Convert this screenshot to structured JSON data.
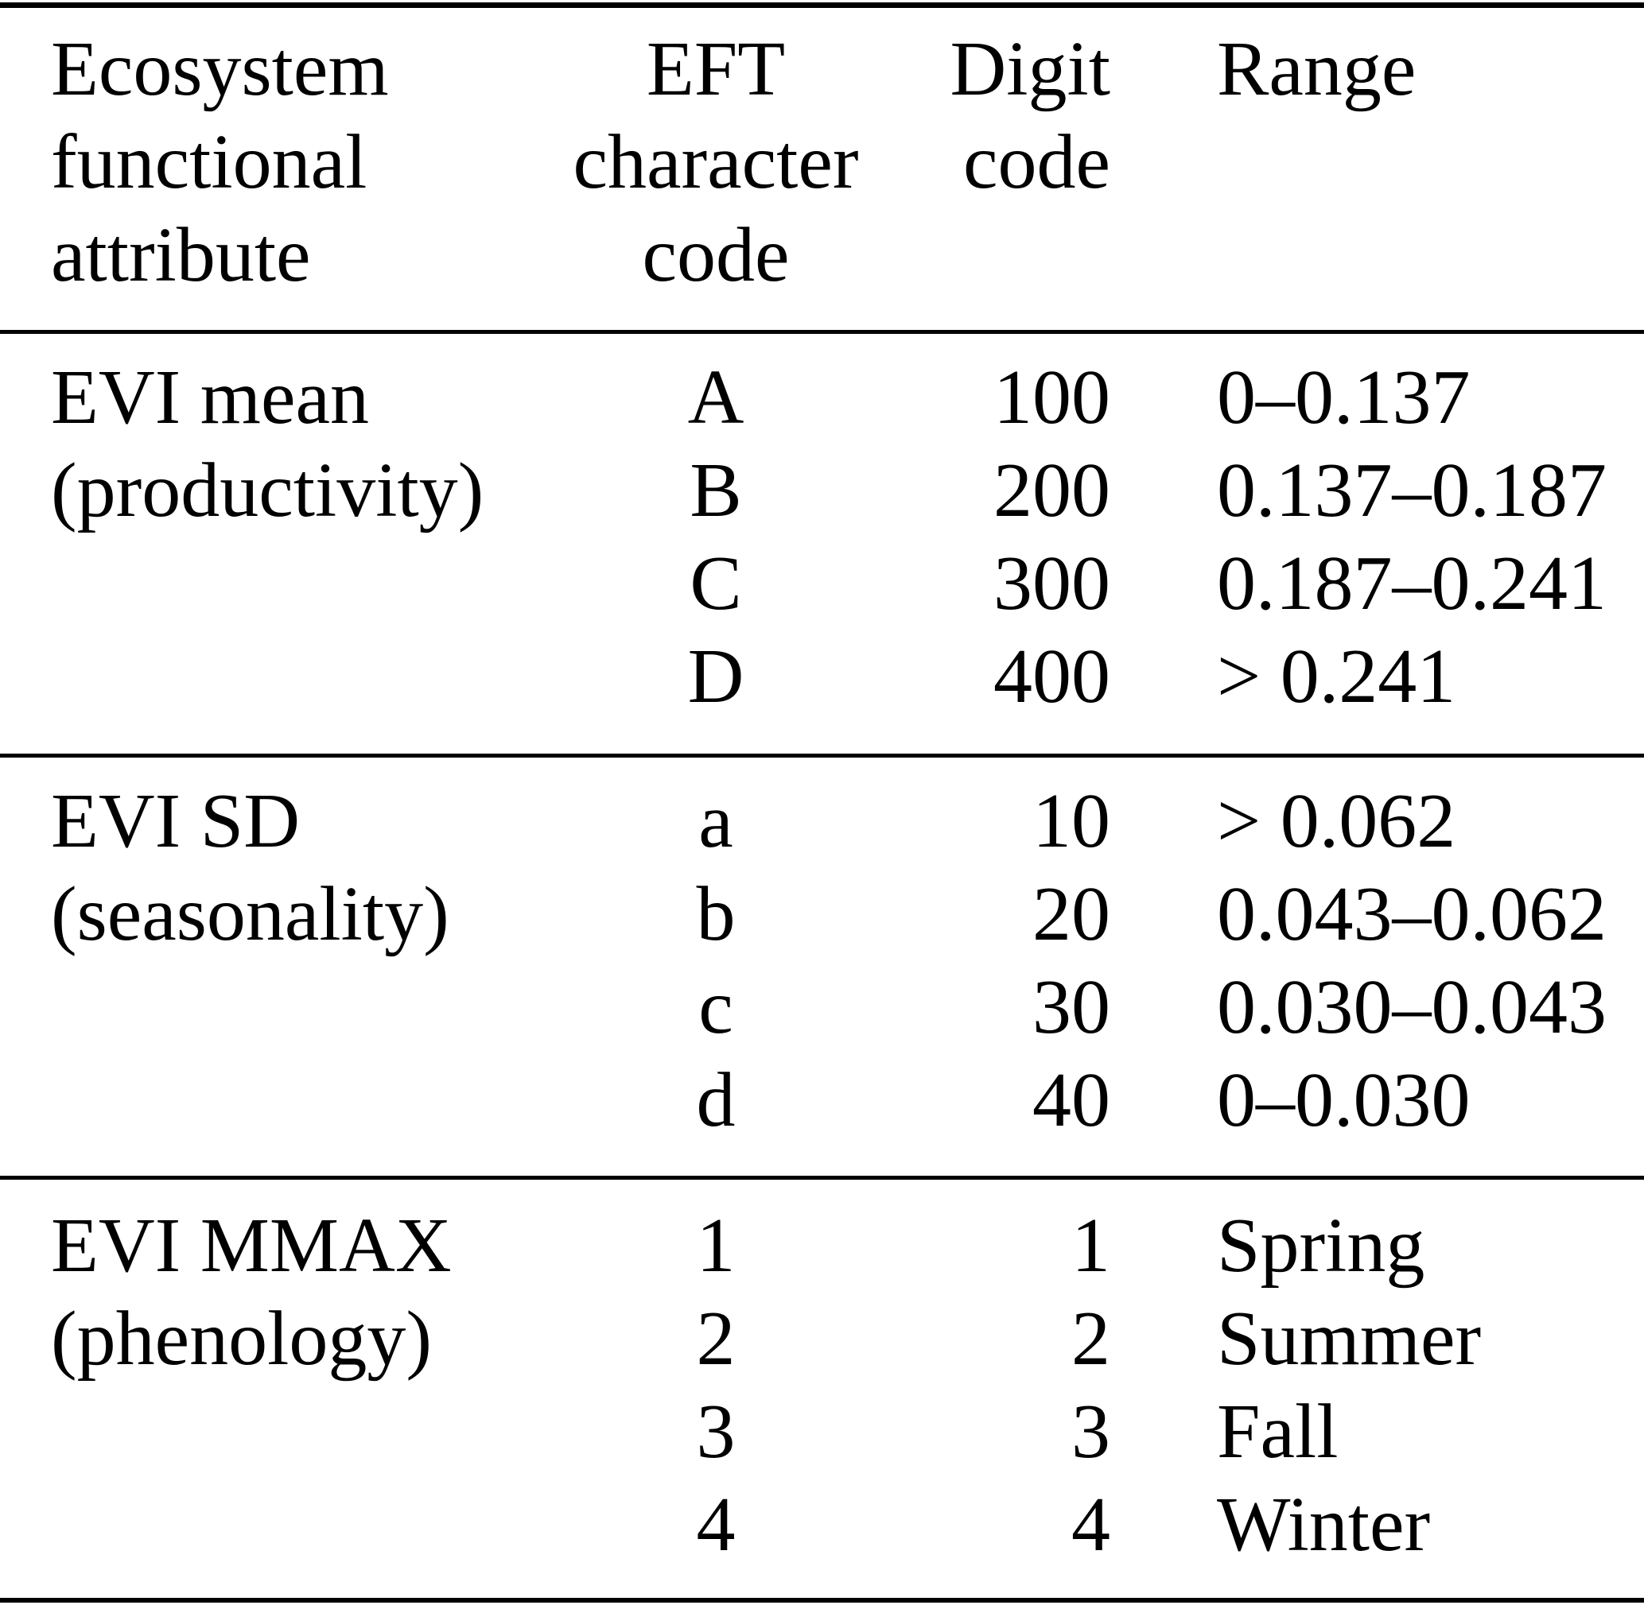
{
  "table": {
    "colors": {
      "text": "#000000",
      "background": "#ffffff",
      "rule": "#000000"
    },
    "header": {
      "col1_lines": [
        "Ecosystem",
        "functional",
        "attribute"
      ],
      "col2_lines": [
        "EFT",
        "character",
        "code"
      ],
      "col3_lines": [
        "Digit",
        "code"
      ],
      "col4_lines": [
        "Range"
      ]
    },
    "sections": [
      {
        "attribute_lines": [
          "EVI mean",
          "(productivity)"
        ],
        "rows": [
          {
            "char_code": "A",
            "digit_code": "100",
            "range": "0–0.137"
          },
          {
            "char_code": "B",
            "digit_code": "200",
            "range": "0.137–0.187"
          },
          {
            "char_code": "C",
            "digit_code": "300",
            "range": "0.187–0.241"
          },
          {
            "char_code": "D",
            "digit_code": "400",
            "range": "> 0.241"
          }
        ]
      },
      {
        "attribute_lines": [
          "EVI SD",
          "(seasonality)"
        ],
        "rows": [
          {
            "char_code": "a",
            "digit_code": "10",
            "range": "> 0.062"
          },
          {
            "char_code": "b",
            "digit_code": "20",
            "range": "0.043–0.062"
          },
          {
            "char_code": "c",
            "digit_code": "30",
            "range": "0.030–0.043"
          },
          {
            "char_code": "d",
            "digit_code": "40",
            "range": "0–0.030"
          }
        ]
      },
      {
        "attribute_lines": [
          "EVI MMAX",
          "(phenology)"
        ],
        "rows": [
          {
            "char_code": "1",
            "digit_code": "1",
            "range": "Spring"
          },
          {
            "char_code": "2",
            "digit_code": "2",
            "range": "Summer"
          },
          {
            "char_code": "3",
            "digit_code": "3",
            "range": "Fall"
          },
          {
            "char_code": "4",
            "digit_code": "4",
            "range": "Winter"
          }
        ]
      }
    ]
  }
}
